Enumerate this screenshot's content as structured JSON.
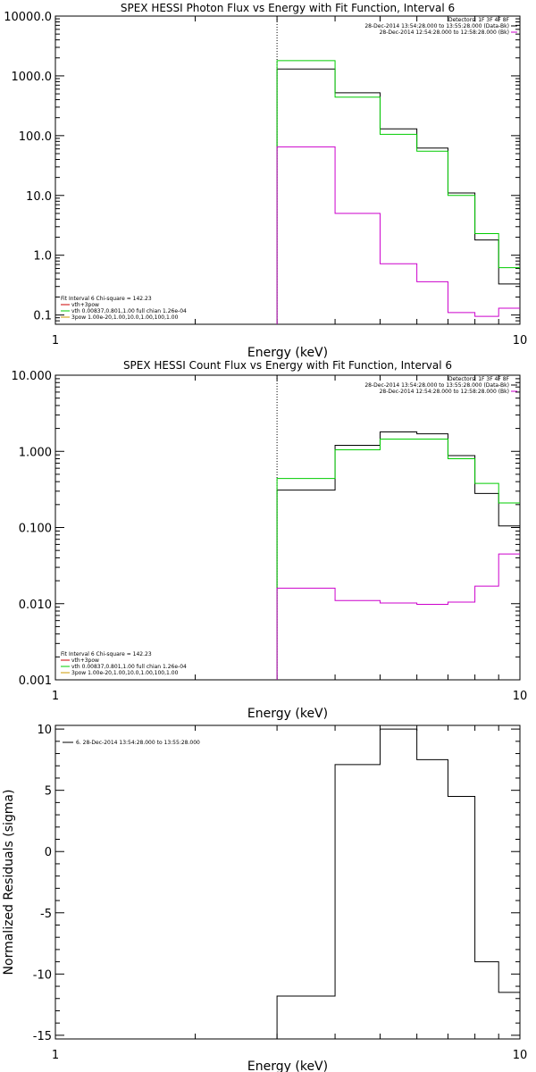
{
  "chart_data": [
    {
      "type": "line",
      "title": "SPEX HESSI Photon Flux vs Energy with Fit Function, Interval 6",
      "xlabel": "Energy (keV)",
      "ylabel": "",
      "xscale": "log",
      "yscale": "log",
      "xlim": [
        1,
        10
      ],
      "ylim": [
        0.07,
        10000
      ],
      "xticks": [
        {
          "v": 1,
          "label": "1"
        },
        {
          "v": 10,
          "label": "10"
        }
      ],
      "yticks": [
        {
          "v": 0.1,
          "label": "0.1"
        },
        {
          "v": 1,
          "label": "1.0"
        },
        {
          "v": 10,
          "label": "10.0"
        },
        {
          "v": 100,
          "label": "100.0"
        },
        {
          "v": 1000,
          "label": "1000.0"
        },
        {
          "v": 10000,
          "label": "10000.0"
        }
      ],
      "vline": 3,
      "edges": [
        3,
        4,
        5,
        6,
        7,
        8,
        9,
        10
      ],
      "series": [
        {
          "color": "#000000",
          "values": [
            1300,
            520,
            130,
            62,
            11,
            1.8,
            0.33
          ]
        },
        {
          "color": "#00cc00",
          "values": [
            1800,
            440,
            105,
            55,
            10,
            2.3,
            0.62
          ]
        },
        {
          "color": "#cc00cc",
          "values": [
            65,
            5,
            0.72,
            0.36,
            0.11,
            0.095,
            0.13
          ]
        }
      ],
      "info_right": [
        {
          "text": "Detectors: 1F 3F 4F 8F",
          "color": "#000000"
        },
        {
          "text": "28-Dec-2014 13:54:28.000 to 13:55:28.000 (Data-Bk)",
          "color": "#000000"
        },
        {
          "text": "28-Dec-2014 12:54:28.000 to 12:58:28.000 (Bk)",
          "color": "#cc00cc"
        }
      ],
      "info_left": [
        {
          "text": "Fit Interval 6   Chi-square = 142.23",
          "color": null
        },
        {
          "text": "vth+3pow",
          "color": "#cc0000"
        },
        {
          "text": "vth 0.00837,0.801,1.00  full chian 1.26e-04",
          "color": "#00cc00"
        },
        {
          "text": "3pow 1.00e-20,1.00,10.0,1.00,100,1.00",
          "color": "#cc9900"
        }
      ]
    },
    {
      "type": "line",
      "title": "SPEX HESSI Count Flux vs Energy with Fit Function, Interval 6",
      "xlabel": "Energy (keV)",
      "ylabel": "",
      "xscale": "log",
      "yscale": "log",
      "xlim": [
        1,
        10
      ],
      "ylim": [
        0.001,
        10
      ],
      "xticks": [
        {
          "v": 1,
          "label": "1"
        },
        {
          "v": 10,
          "label": "10"
        }
      ],
      "yticks": [
        {
          "v": 0.001,
          "label": "0.001"
        },
        {
          "v": 0.01,
          "label": "0.010"
        },
        {
          "v": 0.1,
          "label": "0.100"
        },
        {
          "v": 1,
          "label": "1.000"
        },
        {
          "v": 10,
          "label": "10.000"
        }
      ],
      "vline": 3,
      "edges": [
        3,
        4,
        5,
        6,
        7,
        8,
        9,
        10
      ],
      "series": [
        {
          "color": "#000000",
          "values": [
            0.31,
            1.2,
            1.8,
            1.7,
            0.88,
            0.28,
            0.105
          ]
        },
        {
          "color": "#00cc00",
          "values": [
            0.44,
            1.05,
            1.45,
            1.45,
            0.8,
            0.38,
            0.21
          ]
        },
        {
          "color": "#cc00cc",
          "values": [
            0.016,
            0.011,
            0.0102,
            0.0098,
            0.0105,
            0.017,
            0.045
          ]
        }
      ],
      "info_right": [
        {
          "text": "Detectors: 1F 3F 4F 8F",
          "color": "#000000"
        },
        {
          "text": "28-Dec-2014 13:54:28.000 to 13:55:28.000 (Data-Bk)",
          "color": "#000000"
        },
        {
          "text": "28-Dec-2014 12:54:28.000 to 12:58:28.000 (Bk)",
          "color": "#cc00cc"
        }
      ],
      "info_left": [
        {
          "text": "Fit Interval 6   Chi-square = 142.23",
          "color": null
        },
        {
          "text": "vth+3pow",
          "color": "#cc0000"
        },
        {
          "text": "vth 0.00837,0.801,1.00  full chian 1.26e-04",
          "color": "#00cc00"
        },
        {
          "text": "3pow 1.00e-20,1.00,10.0,1.00,100,1.00",
          "color": "#cc9900"
        }
      ]
    },
    {
      "type": "line",
      "title": "",
      "xlabel": "Energy (keV)",
      "ylabel": "Normalized Residuals (sigma)",
      "xscale": "log",
      "yscale": "linear",
      "xlim": [
        1,
        10
      ],
      "ylim": [
        -15.3,
        10.3
      ],
      "xticks": [
        {
          "v": 1,
          "label": "1"
        },
        {
          "v": 10,
          "label": "10"
        }
      ],
      "yticks": [
        {
          "v": -15,
          "label": "-15"
        },
        {
          "v": -10,
          "label": "-10"
        },
        {
          "v": -5,
          "label": "-5"
        },
        {
          "v": 0,
          "label": "0"
        },
        {
          "v": 5,
          "label": "5"
        },
        {
          "v": 10,
          "label": "10"
        }
      ],
      "vline": null,
      "edges": [
        3,
        4,
        5,
        6,
        7,
        8,
        9,
        10
      ],
      "series": [
        {
          "color": "#000000",
          "values": [
            -11.8,
            7.1,
            10,
            7.5,
            4.5,
            -9,
            -11.5
          ]
        }
      ],
      "info_right": [],
      "info_left": [],
      "legend": {
        "text": "6. 28-Dec-2014 13:54:28.000 to 13:55:28.000",
        "color": "#000000"
      }
    }
  ]
}
